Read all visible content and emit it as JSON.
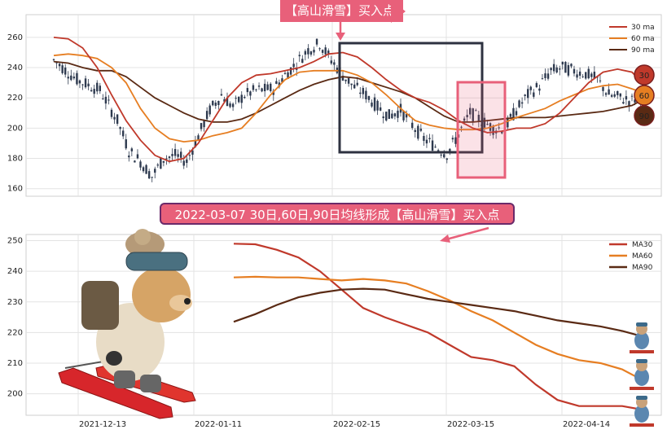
{
  "top_banner": "【高山滑雪】买入点",
  "mid_banner": "2022-03-07 30日,60日,90日均线形成【高山滑雪】买入点",
  "badges": [
    "30",
    "60",
    "90"
  ],
  "colors": {
    "ma30": "#c0392b",
    "ma60": "#e67e22",
    "ma90": "#5a2a14",
    "candle": "#2e3a4f",
    "pink": "#e8607a"
  },
  "chart_data": [
    {
      "type": "candlestick",
      "ylim": [
        155,
        275
      ],
      "yticks": [
        160,
        180,
        200,
        220,
        240,
        260
      ],
      "legend": [
        "30 ma",
        "60 ma",
        "90 ma"
      ],
      "legend_position": "top-right",
      "grid": true,
      "annotation_boxes": [
        {
          "color": "#2e3240",
          "x_range": [
            "2022-02-15",
            "2022-03-24"
          ],
          "y_range": [
            185,
            260
          ]
        },
        {
          "color": "#e8607a",
          "x_range": [
            "2022-03-10",
            "2022-03-24"
          ],
          "y_range": [
            168,
            233
          ]
        }
      ],
      "ma30": [
        [
          0,
          260
        ],
        [
          5,
          259
        ],
        [
          10,
          253
        ],
        [
          15,
          240
        ],
        [
          20,
          222
        ],
        [
          25,
          205
        ],
        [
          30,
          192
        ],
        [
          35,
          182
        ],
        [
          40,
          178
        ],
        [
          45,
          180
        ],
        [
          50,
          190
        ],
        [
          55,
          205
        ],
        [
          60,
          220
        ],
        [
          65,
          230
        ],
        [
          70,
          235
        ],
        [
          75,
          236
        ],
        [
          80,
          238
        ],
        [
          85,
          240
        ],
        [
          90,
          244
        ],
        [
          95,
          249
        ],
        [
          100,
          250
        ],
        [
          105,
          247
        ],
        [
          110,
          240
        ],
        [
          115,
          232
        ],
        [
          120,
          225
        ],
        [
          125,
          220
        ],
        [
          130,
          217
        ],
        [
          135,
          212
        ],
        [
          140,
          205
        ],
        [
          145,
          200
        ],
        [
          150,
          197
        ],
        [
          155,
          198
        ],
        [
          160,
          200
        ],
        [
          165,
          200
        ],
        [
          170,
          203
        ],
        [
          175,
          210
        ],
        [
          180,
          220
        ],
        [
          185,
          230
        ],
        [
          190,
          237
        ],
        [
          195,
          239
        ],
        [
          200,
          237
        ],
        [
          203,
          231
        ]
      ],
      "ma60": [
        [
          0,
          248
        ],
        [
          5,
          249
        ],
        [
          10,
          248
        ],
        [
          15,
          246
        ],
        [
          20,
          240
        ],
        [
          25,
          230
        ],
        [
          30,
          213
        ],
        [
          35,
          200
        ],
        [
          40,
          193
        ],
        [
          45,
          191
        ],
        [
          50,
          192
        ],
        [
          55,
          195
        ],
        [
          60,
          197
        ],
        [
          65,
          200
        ],
        [
          70,
          210
        ],
        [
          75,
          222
        ],
        [
          80,
          232
        ],
        [
          85,
          237
        ],
        [
          90,
          238
        ],
        [
          95,
          238
        ],
        [
          100,
          238
        ],
        [
          105,
          235
        ],
        [
          110,
          230
        ],
        [
          115,
          222
        ],
        [
          120,
          213
        ],
        [
          125,
          205
        ],
        [
          130,
          202
        ],
        [
          135,
          200
        ],
        [
          140,
          199
        ],
        [
          145,
          199
        ],
        [
          150,
          200
        ],
        [
          155,
          203
        ],
        [
          160,
          207
        ],
        [
          165,
          210
        ],
        [
          170,
          213
        ],
        [
          175,
          218
        ],
        [
          180,
          222
        ],
        [
          185,
          226
        ],
        [
          190,
          228
        ],
        [
          195,
          229
        ],
        [
          200,
          226
        ],
        [
          203,
          224
        ]
      ],
      "ma90": [
        [
          0,
          244
        ],
        [
          5,
          243
        ],
        [
          10,
          240
        ],
        [
          15,
          238
        ],
        [
          20,
          238
        ],
        [
          25,
          234
        ],
        [
          30,
          227
        ],
        [
          35,
          220
        ],
        [
          40,
          215
        ],
        [
          45,
          210
        ],
        [
          50,
          206
        ],
        [
          55,
          204
        ],
        [
          60,
          204
        ],
        [
          65,
          206
        ],
        [
          70,
          210
        ],
        [
          75,
          215
        ],
        [
          80,
          220
        ],
        [
          85,
          225
        ],
        [
          90,
          229
        ],
        [
          95,
          232
        ],
        [
          100,
          234
        ],
        [
          105,
          233
        ],
        [
          110,
          230
        ],
        [
          115,
          227
        ],
        [
          120,
          224
        ],
        [
          125,
          220
        ],
        [
          130,
          214
        ],
        [
          135,
          208
        ],
        [
          140,
          204
        ],
        [
          145,
          204
        ],
        [
          150,
          205
        ],
        [
          155,
          206
        ],
        [
          160,
          207
        ],
        [
          165,
          207
        ],
        [
          170,
          207
        ],
        [
          175,
          208
        ],
        [
          180,
          209
        ],
        [
          185,
          210
        ],
        [
          190,
          211
        ],
        [
          195,
          213
        ],
        [
          200,
          215
        ],
        [
          203,
          218
        ]
      ]
    },
    {
      "type": "line",
      "ylim": [
        193,
        252
      ],
      "yticks": [
        200,
        210,
        220,
        230,
        240,
        250
      ],
      "xticks": [
        "2021-12-13",
        "2022-01-11",
        "2022-02-15",
        "2022-03-15",
        "2022-04-14"
      ],
      "legend": [
        "MA30",
        "MA60",
        "MA90"
      ],
      "legend_position": "top-right",
      "grid": true,
      "series": [
        {
          "name": "MA30",
          "color": "#c0392b",
          "values": [
            [
              0,
              249
            ],
            [
              5,
              248.8
            ],
            [
              10,
              247
            ],
            [
              15,
              244.5
            ],
            [
              20,
              240
            ],
            [
              25,
              234
            ],
            [
              30,
              228
            ],
            [
              35,
              225
            ],
            [
              40,
              222.5
            ],
            [
              45,
              220
            ],
            [
              50,
              216
            ],
            [
              55,
              212
            ],
            [
              60,
              211
            ],
            [
              65,
              209
            ],
            [
              70,
              203
            ],
            [
              75,
              198
            ],
            [
              80,
              196
            ],
            [
              85,
              196
            ],
            [
              90,
              196
            ],
            [
              94,
              195
            ]
          ]
        },
        {
          "name": "MA60",
          "color": "#e67e22",
          "values": [
            [
              0,
              238
            ],
            [
              5,
              238.2
            ],
            [
              10,
              238
            ],
            [
              15,
              238
            ],
            [
              20,
              237.5
            ],
            [
              25,
              237
            ],
            [
              30,
              237.5
            ],
            [
              35,
              237
            ],
            [
              40,
              236
            ],
            [
              45,
              233.5
            ],
            [
              50,
              230.5
            ],
            [
              55,
              227
            ],
            [
              60,
              224
            ],
            [
              65,
              220
            ],
            [
              70,
              216
            ],
            [
              75,
              213
            ],
            [
              80,
              211
            ],
            [
              85,
              210
            ],
            [
              90,
              208
            ],
            [
              94,
              205
            ]
          ]
        },
        {
          "name": "MA90",
          "color": "#5a2a14",
          "values": [
            [
              0,
              223.5
            ],
            [
              5,
              226
            ],
            [
              10,
              229
            ],
            [
              15,
              231.5
            ],
            [
              20,
              233
            ],
            [
              25,
              234
            ],
            [
              30,
              234.3
            ],
            [
              35,
              234
            ],
            [
              40,
              232.5
            ],
            [
              45,
              231
            ],
            [
              50,
              230
            ],
            [
              55,
              229
            ],
            [
              60,
              228
            ],
            [
              65,
              227
            ],
            [
              70,
              225.5
            ],
            [
              75,
              224
            ],
            [
              80,
              223
            ],
            [
              85,
              222
            ],
            [
              90,
              220.5
            ],
            [
              94,
              219
            ]
          ]
        }
      ]
    }
  ]
}
